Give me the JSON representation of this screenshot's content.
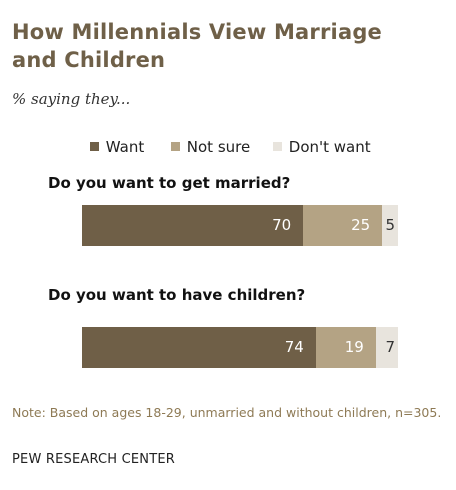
{
  "title_line1": "How Millennials View Marriage",
  "title_line2": "and Children",
  "subtitle": "% saying they...",
  "note": "Note: Based on ages 18-29, unmarried and without children, n=305.",
  "source": "PEW RESEARCH CENTER",
  "colors": {
    "want": "#6f5f47",
    "not_sure": "#b4a384",
    "dont_want": "#e8e4dd"
  },
  "chart_data": {
    "type": "bar",
    "orientation": "horizontal",
    "stacked": true,
    "categories": [
      "Do you want to get married?",
      "Do you want to have children?"
    ],
    "series": [
      {
        "name": "Want",
        "values": [
          70,
          74
        ]
      },
      {
        "name": "Not sure",
        "values": [
          25,
          19
        ]
      },
      {
        "name": "Don't want",
        "values": [
          5,
          7
        ]
      }
    ],
    "legend_position": "top",
    "grid": false
  }
}
